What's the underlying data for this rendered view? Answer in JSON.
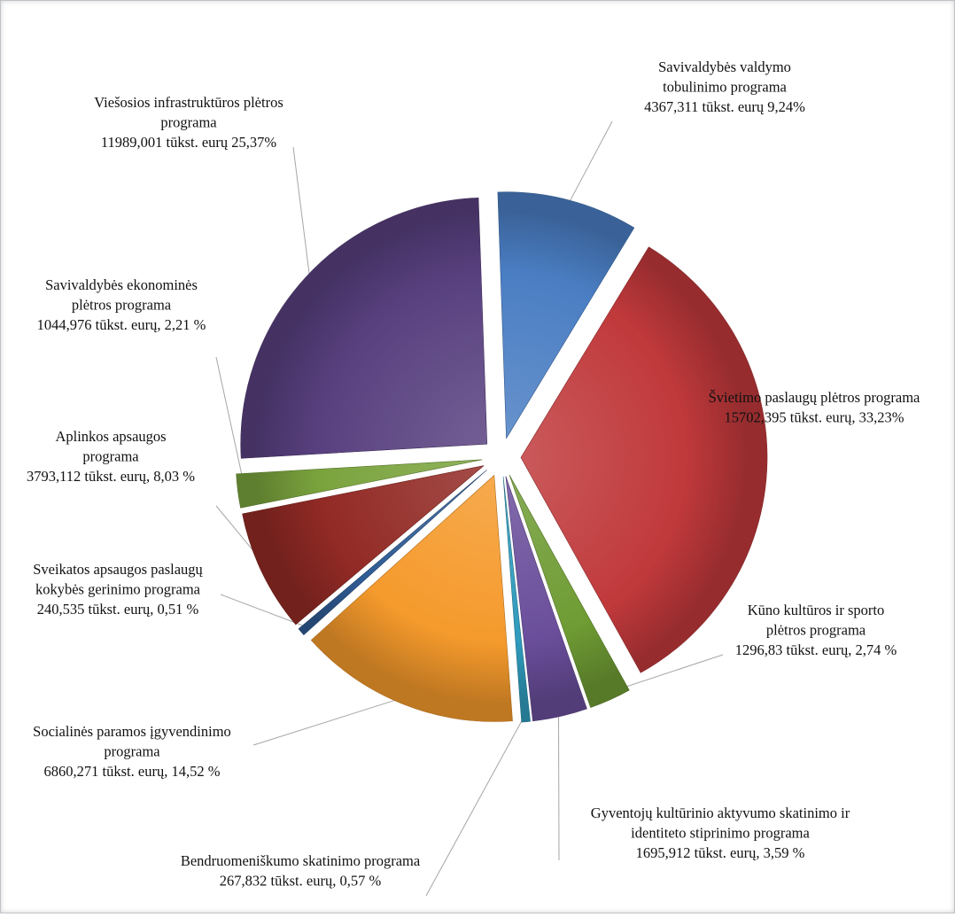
{
  "chart_data": {
    "type": "pie",
    "title": "",
    "unit": "tūkst. eurų",
    "legend": "none",
    "series": [
      {
        "slices": [
          {
            "name": "Savivaldybės valdymo tobulinimo programa",
            "value": 4367.311,
            "percent": 9.24,
            "color": "#4a7ec3",
            "label_lines": [
              "Savivaldybės valdymo",
              "tobulinimo programa",
              "4367,311 tūkst. eurų 9,24%"
            ]
          },
          {
            "name": "Švietimo paslaugų plėtros programa",
            "value": 15702.395,
            "percent": 33.23,
            "color": "#c0393b",
            "label_lines": [
              "Švietimo paslaugų plėtros programa",
              "15702,395 tūkst. eurų, 33,23%"
            ]
          },
          {
            "name": "Kūno kultūros ir sporto plėtros programa",
            "value": 1296.83,
            "percent": 2.74,
            "color": "#6f9c34",
            "label_lines": [
              "Kūno kultūros ir sporto",
              "plėtros programa",
              "1296,83 tūkst. eurų, 2,74 %"
            ]
          },
          {
            "name": "Gyventojų kultūrinio aktyvumo skatinimo ir identiteto stiprinimo programa",
            "value": 1695.912,
            "percent": 3.59,
            "color": "#6a4e9b",
            "label_lines": [
              "Gyventojų kultūrinio aktyvumo skatinimo ir",
              "identiteto stiprinimo programa",
              "1695,912 tūkst. eurų, 3,59 %"
            ]
          },
          {
            "name": "Bendruomeniškumo skatinimo programa",
            "value": 267.832,
            "percent": 0.57,
            "color": "#2f9bbd",
            "label_lines": [
              "Bendruomeniškumo skatinimo programa",
              "267,832 tūkst. eurų, 0,57 %"
            ]
          },
          {
            "name": "Socialinės paramos įgyvendinimo programa",
            "value": 6860.271,
            "percent": 14.52,
            "color": "#f59a2c",
            "label_lines": [
              "Socialinės paramos įgyvendinimo",
              "programa",
              "6860,271 tūkst. eurų, 14,52 %"
            ]
          },
          {
            "name": "Sveikatos apsaugos paslaugų kokybės gerinimo programa",
            "value": 240.535,
            "percent": 0.51,
            "color": "#2f5b94",
            "label_lines": [
              "Sveikatos apsaugos paslaugų",
              "kokybės gerinimo programa",
              "240,535 tūkst. eurų, 0,51 %"
            ]
          },
          {
            "name": "Aplinkos apsaugos programa",
            "value": 3793.112,
            "percent": 8.03,
            "color": "#922a25",
            "label_lines": [
              "Aplinkos apsaugos",
              "programa",
              "3793,112 tūkst. eurų, 8,03 %"
            ]
          },
          {
            "name": "Savivaldybės ekonominės plėtros programa",
            "value": 1044.976,
            "percent": 2.21,
            "color": "#7aa33d",
            "label_lines": [
              "Savivaldybės ekonominės",
              "plėtros programa",
              "1044,976 tūkst. eurų, 2,21 %"
            ]
          },
          {
            "name": "Viešosios infrastruktūros plėtros programa",
            "value": 11989.001,
            "percent": 25.37,
            "color": "#58407f",
            "label_lines": [
              "Viešosios infrastruktūros plėtros",
              "programa",
              "11989,001 tūkst. eurų 25,37%"
            ]
          }
        ]
      }
    ]
  }
}
